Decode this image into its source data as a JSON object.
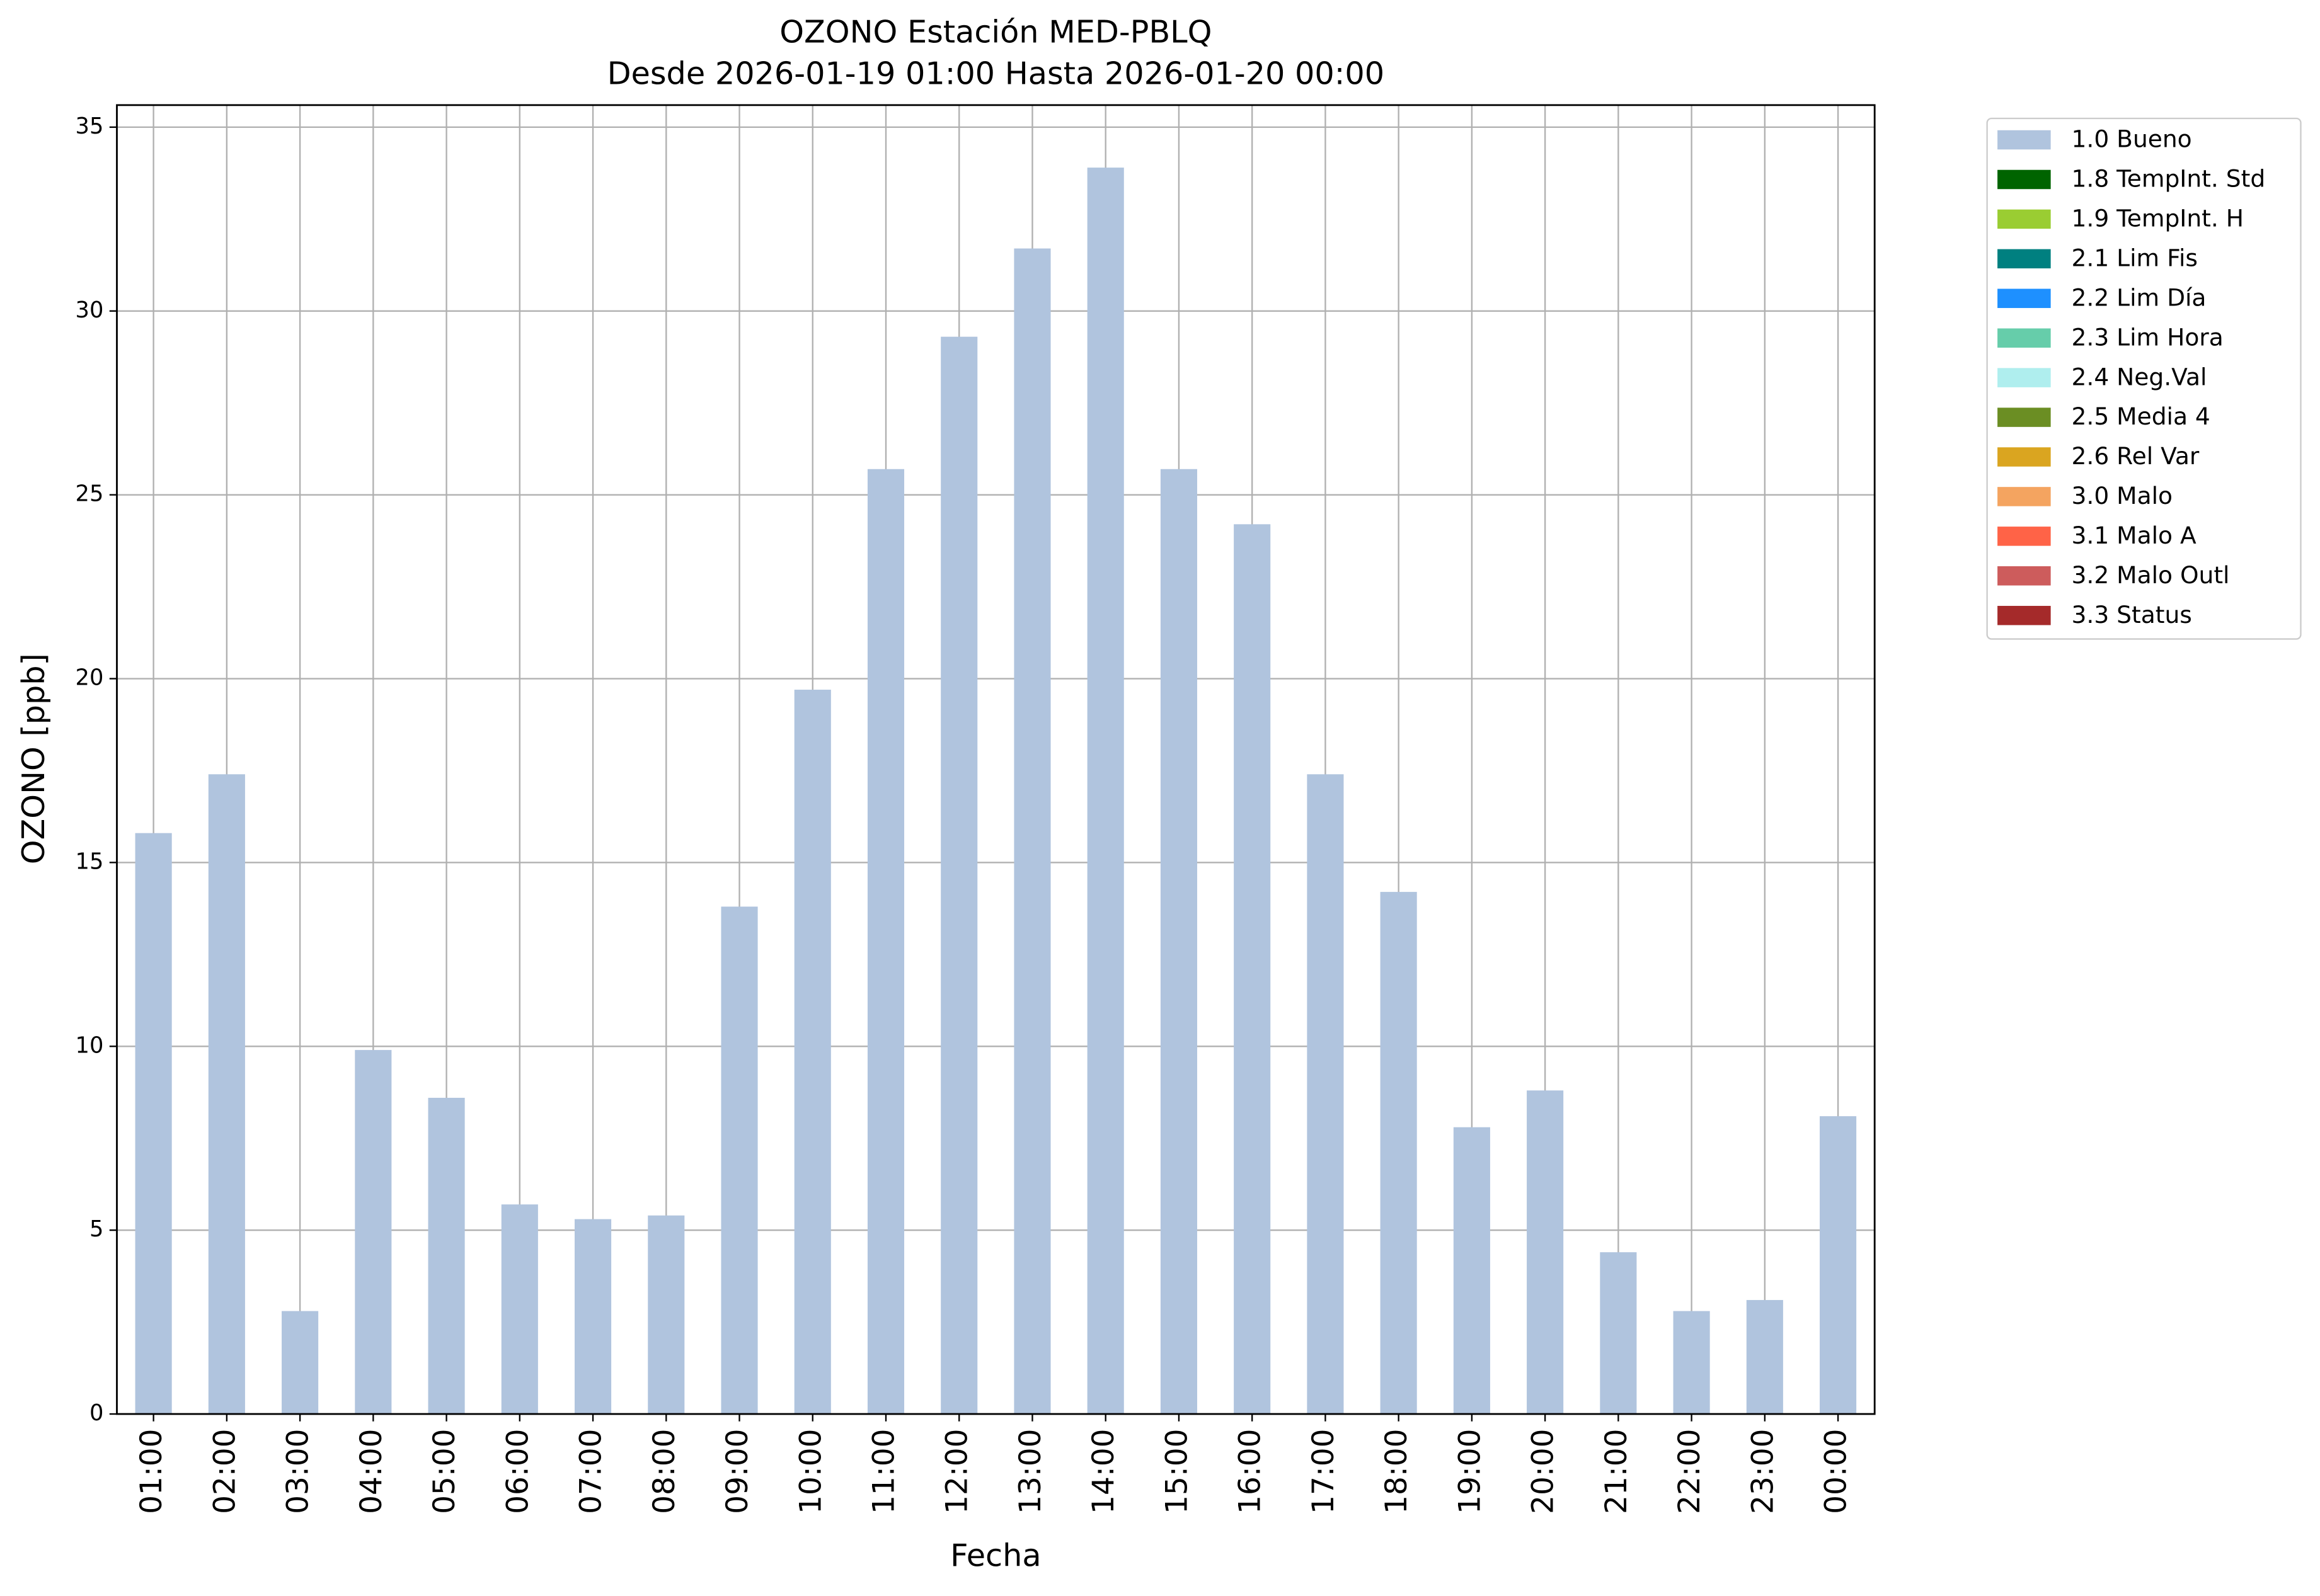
{
  "chart_data": {
    "type": "stacked_bar",
    "title": "OZONO Estación MED-PBLQ",
    "subtitle": "Desde 2026-01-19 01:00 Hasta 2026-01-20 00:00",
    "x_label": "Fecha",
    "y_label": "OZONO [ppb]",
    "categories": [
      "01:00",
      "02:00",
      "03:00",
      "04:00",
      "05:00",
      "06:00",
      "07:00",
      "08:00",
      "09:00",
      "10:00",
      "11:00",
      "12:00",
      "13:00",
      "14:00",
      "15:00",
      "16:00",
      "17:00",
      "18:00",
      "19:00",
      "20:00",
      "21:00",
      "22:00",
      "23:00",
      "00:00"
    ],
    "series": [
      {
        "name": "1.0 Bueno",
        "color": "#b0c4de",
        "values": [
          15.8,
          17.4,
          2.8,
          9.9,
          8.6,
          5.7,
          5.3,
          5.4,
          13.8,
          19.7,
          25.7,
          29.3,
          31.7,
          33.9,
          25.7,
          24.2,
          17.4,
          14.2,
          7.8,
          8.8,
          4.4,
          2.8,
          3.1,
          8.1
        ]
      },
      {
        "name": "1.8 TempInt. Std",
        "color": "#006400",
        "values": [
          0,
          0,
          0,
          0,
          0,
          0,
          0,
          0,
          0,
          0,
          0,
          0,
          0,
          0,
          0,
          0,
          0,
          0,
          0,
          0,
          0,
          0,
          0,
          0
        ]
      },
      {
        "name": "1.9 TempInt. H",
        "color": "#9acd32",
        "values": [
          0,
          0,
          0,
          0,
          0,
          0,
          0,
          0,
          0,
          0,
          0,
          0,
          0,
          0,
          0,
          0,
          0,
          0,
          0,
          0,
          0,
          0,
          0,
          0
        ]
      },
      {
        "name": "2.1 Lim Fis",
        "color": "#008080",
        "values": [
          0,
          0,
          0,
          0,
          0,
          0,
          0,
          0,
          0,
          0,
          0,
          0,
          0,
          0,
          0,
          0,
          0,
          0,
          0,
          0,
          0,
          0,
          0,
          0
        ]
      },
      {
        "name": "2.2 Lim Día",
        "color": "#1e90ff",
        "values": [
          0,
          0,
          0,
          0,
          0,
          0,
          0,
          0,
          0,
          0,
          0,
          0,
          0,
          0,
          0,
          0,
          0,
          0,
          0,
          0,
          0,
          0,
          0,
          0
        ]
      },
      {
        "name": "2.3 Lim Hora",
        "color": "#66cdaa",
        "values": [
          0,
          0,
          0,
          0,
          0,
          0,
          0,
          0,
          0,
          0,
          0,
          0,
          0,
          0,
          0,
          0,
          0,
          0,
          0,
          0,
          0,
          0,
          0,
          0
        ]
      },
      {
        "name": "2.4 Neg.Val",
        "color": "#afeeee",
        "values": [
          0,
          0,
          0,
          0,
          0,
          0,
          0,
          0,
          0,
          0,
          0,
          0,
          0,
          0,
          0,
          0,
          0,
          0,
          0,
          0,
          0,
          0,
          0,
          0
        ]
      },
      {
        "name": "2.5 Media 4",
        "color": "#6b8e23",
        "values": [
          0,
          0,
          0,
          0,
          0,
          0,
          0,
          0,
          0,
          0,
          0,
          0,
          0,
          0,
          0,
          0,
          0,
          0,
          0,
          0,
          0,
          0,
          0,
          0
        ]
      },
      {
        "name": "2.6 Rel Var",
        "color": "#daa520",
        "values": [
          0,
          0,
          0,
          0,
          0,
          0,
          0,
          0,
          0,
          0,
          0,
          0,
          0,
          0,
          0,
          0,
          0,
          0,
          0,
          0,
          0,
          0,
          0,
          0
        ]
      },
      {
        "name": "3.0 Malo",
        "color": "#f4a460",
        "values": [
          0,
          0,
          0,
          0,
          0,
          0,
          0,
          0,
          0,
          0,
          0,
          0,
          0,
          0,
          0,
          0,
          0,
          0,
          0,
          0,
          0,
          0,
          0,
          0
        ]
      },
      {
        "name": "3.1 Malo A",
        "color": "#ff6347",
        "values": [
          0,
          0,
          0,
          0,
          0,
          0,
          0,
          0,
          0,
          0,
          0,
          0,
          0,
          0,
          0,
          0,
          0,
          0,
          0,
          0,
          0,
          0,
          0,
          0
        ]
      },
      {
        "name": "3.2 Malo Outl",
        "color": "#cd5c5c",
        "values": [
          0,
          0,
          0,
          0,
          0,
          0,
          0,
          0,
          0,
          0,
          0,
          0,
          0,
          0,
          0,
          0,
          0,
          0,
          0,
          0,
          0,
          0,
          0,
          0
        ]
      },
      {
        "name": "3.3 Status",
        "color": "#a52a2a",
        "values": [
          0,
          0,
          0,
          0,
          0,
          0,
          0,
          0,
          0,
          0,
          0,
          0,
          0,
          0,
          0,
          0,
          0,
          0,
          0,
          0,
          0,
          0,
          0,
          0
        ]
      }
    ],
    "ylim": [
      0,
      35.6
    ],
    "yticks": [
      0,
      5,
      10,
      15,
      20,
      25,
      30,
      35
    ],
    "grid": true,
    "legend": "outside-right"
  }
}
